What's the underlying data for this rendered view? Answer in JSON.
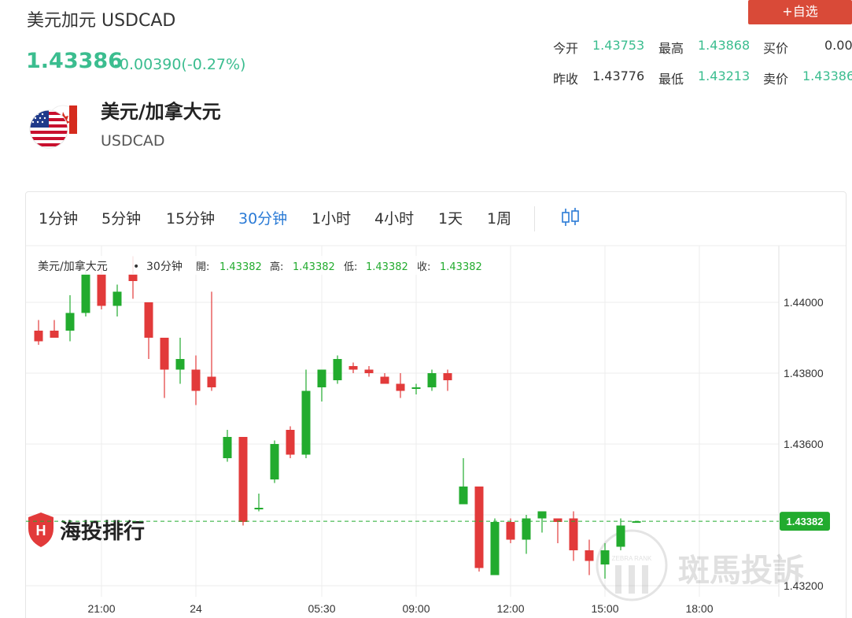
{
  "header": {
    "title": "美元加元 USDCAD",
    "watch_button": "+自选"
  },
  "quote": {
    "price": "1.43386",
    "change": "-0.00390(-0.27%)"
  },
  "stats": {
    "open_label": "今开",
    "open_value": "1.43753",
    "high_label": "最高",
    "high_value": "1.43868",
    "bid_label": "买价",
    "bid_value": "0.00",
    "prev_close_label": "昨收",
    "prev_close_value": "1.43776",
    "low_label": "最低",
    "low_value": "1.43213",
    "ask_label": "卖价",
    "ask_value": "1.43386"
  },
  "instrument": {
    "name": "美元/加拿大元",
    "code": "USDCAD",
    "flag_icon": "us-ca-flag-icon"
  },
  "timeframes": [
    "1分钟",
    "5分钟",
    "15分钟",
    "30分钟",
    "1小时",
    "4小时",
    "1天",
    "1周"
  ],
  "active_timeframe": "30分钟",
  "ohlc_legend": {
    "symbol": "美元/加拿大元",
    "interval": "30分钟",
    "open_label": "開:",
    "open": "1.43382",
    "high_label": "高:",
    "high": "1.43382",
    "low_label": "低:",
    "low": "1.43382",
    "close_label": "收:",
    "close": "1.43382"
  },
  "watermarks": {
    "left": "海投排行",
    "right": "斑馬投訴",
    "badge": "ZEBRA RANK"
  },
  "colors": {
    "up": "#22ab2e",
    "down": "#e23a3a",
    "accent_green": "#3bbd8f",
    "button_red": "#d94a38",
    "active_tab": "#2b7bd6"
  },
  "chart_data": {
    "type": "candlestick",
    "interval": "30分钟",
    "x_tick_labels": [
      "21:00",
      "24",
      "05:30",
      "09:00",
      "12:00",
      "15:00",
      "18:00"
    ],
    "y_tick_labels": [
      "1.44000",
      "1.43800",
      "1.43600",
      "1.43200"
    ],
    "last_price_label": "1.43382",
    "last_price": 1.43382,
    "ylim": [
      1.4315,
      1.4414
    ],
    "grid": true,
    "candles": [
      {
        "o": 1.4392,
        "h": 1.4395,
        "l": 1.4388,
        "c": 1.4389
      },
      {
        "o": 1.4392,
        "h": 1.4395,
        "l": 1.439,
        "c": 1.439
      },
      {
        "o": 1.4392,
        "h": 1.4402,
        "l": 1.4389,
        "c": 1.4397
      },
      {
        "o": 1.4397,
        "h": 1.4409,
        "l": 1.4396,
        "c": 1.4408
      },
      {
        "o": 1.4408,
        "h": 1.441,
        "l": 1.4398,
        "c": 1.4399
      },
      {
        "o": 1.4399,
        "h": 1.4405,
        "l": 1.4396,
        "c": 1.4403
      },
      {
        "o": 1.4408,
        "h": 1.4413,
        "l": 1.4401,
        "c": 1.4406
      },
      {
        "o": 1.44,
        "h": 1.44,
        "l": 1.4384,
        "c": 1.439
      },
      {
        "o": 1.439,
        "h": 1.439,
        "l": 1.4373,
        "c": 1.4381
      },
      {
        "o": 1.4381,
        "h": 1.439,
        "l": 1.4377,
        "c": 1.4384
      },
      {
        "o": 1.4381,
        "h": 1.4385,
        "l": 1.4371,
        "c": 1.4375
      },
      {
        "o": 1.4379,
        "h": 1.4403,
        "l": 1.4375,
        "c": 1.4376
      },
      {
        "o": 1.4356,
        "h": 1.4364,
        "l": 1.4355,
        "c": 1.4362
      },
      {
        "o": 1.4362,
        "h": 1.4362,
        "l": 1.4337,
        "c": 1.4338
      },
      {
        "o": 1.4342,
        "h": 1.4346,
        "l": 1.4341,
        "c": 1.4342
      },
      {
        "o": 1.435,
        "h": 1.4361,
        "l": 1.4349,
        "c": 1.436
      },
      {
        "o": 1.4364,
        "h": 1.4365,
        "l": 1.4356,
        "c": 1.4357
      },
      {
        "o": 1.4357,
        "h": 1.4381,
        "l": 1.4356,
        "c": 1.4375
      },
      {
        "o": 1.4376,
        "h": 1.4381,
        "l": 1.4372,
        "c": 1.4381
      },
      {
        "o": 1.4378,
        "h": 1.4385,
        "l": 1.4377,
        "c": 1.4384
      },
      {
        "o": 1.4382,
        "h": 1.4383,
        "l": 1.438,
        "c": 1.4381
      },
      {
        "o": 1.4381,
        "h": 1.4382,
        "l": 1.4379,
        "c": 1.438
      },
      {
        "o": 1.4379,
        "h": 1.438,
        "l": 1.4377,
        "c": 1.4377
      },
      {
        "o": 1.4377,
        "h": 1.438,
        "l": 1.4373,
        "c": 1.4375
      },
      {
        "o": 1.4376,
        "h": 1.4377,
        "l": 1.4374,
        "c": 1.4376
      },
      {
        "o": 1.4376,
        "h": 1.4381,
        "l": 1.4375,
        "c": 1.438
      },
      {
        "o": 1.438,
        "h": 1.4381,
        "l": 1.4375,
        "c": 1.4378
      },
      {
        "o": 1.4343,
        "h": 1.4356,
        "l": 1.4343,
        "c": 1.4348
      },
      {
        "o": 1.4348,
        "h": 1.4348,
        "l": 1.4324,
        "c": 1.4325
      },
      {
        "o": 1.4323,
        "h": 1.4339,
        "l": 1.4323,
        "c": 1.4338
      },
      {
        "o": 1.4338,
        "h": 1.4339,
        "l": 1.4332,
        "c": 1.4333
      },
      {
        "o": 1.4333,
        "h": 1.434,
        "l": 1.4329,
        "c": 1.4339
      },
      {
        "o": 1.4339,
        "h": 1.4341,
        "l": 1.4335,
        "c": 1.4341
      },
      {
        "o": 1.4339,
        "h": 1.4339,
        "l": 1.4332,
        "c": 1.4338
      },
      {
        "o": 1.4339,
        "h": 1.4341,
        "l": 1.4327,
        "c": 1.433
      },
      {
        "o": 1.433,
        "h": 1.4333,
        "l": 1.4323,
        "c": 1.4327
      },
      {
        "o": 1.4326,
        "h": 1.4332,
        "l": 1.4322,
        "c": 1.433
      },
      {
        "o": 1.4331,
        "h": 1.4339,
        "l": 1.433,
        "c": 1.4337
      },
      {
        "o": 1.43382,
        "h": 1.43382,
        "l": 1.43382,
        "c": 1.43382
      }
    ]
  }
}
